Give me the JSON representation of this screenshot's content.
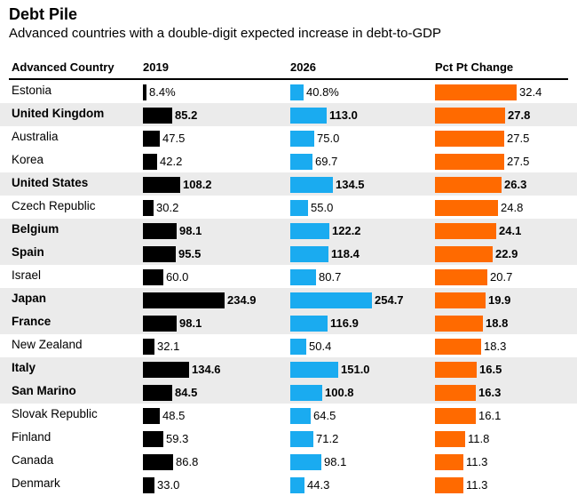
{
  "chart_data": {
    "type": "table",
    "title": "Debt Pile",
    "subtitle": "Advanced countries with a double-digit expected increase in debt-to-GDP",
    "columns": [
      "Advanced Country",
      "2019",
      "2026",
      "Pct Pt Change"
    ],
    "colors": {
      "y2019": "#000000",
      "y2026": "#1aabf0",
      "change": "#ff6a00",
      "shade": "#ebebeb"
    },
    "rows": [
      {
        "country": "Estonia",
        "y2019": 8.4,
        "y2019_label": "8.4%",
        "y2026": 40.8,
        "y2026_label": "40.8%",
        "change": 32.4,
        "change_label": "32.4",
        "bold": false
      },
      {
        "country": "United Kingdom",
        "y2019": 85.2,
        "y2019_label": "85.2",
        "y2026": 113.0,
        "y2026_label": "113.0",
        "change": 27.8,
        "change_label": "27.8",
        "bold": true
      },
      {
        "country": "Australia",
        "y2019": 47.5,
        "y2019_label": "47.5",
        "y2026": 75.0,
        "y2026_label": "75.0",
        "change": 27.5,
        "change_label": "27.5",
        "bold": false
      },
      {
        "country": "Korea",
        "y2019": 42.2,
        "y2019_label": "42.2",
        "y2026": 69.7,
        "y2026_label": "69.7",
        "change": 27.5,
        "change_label": "27.5",
        "bold": false
      },
      {
        "country": "United States",
        "y2019": 108.2,
        "y2019_label": "108.2",
        "y2026": 134.5,
        "y2026_label": "134.5",
        "change": 26.3,
        "change_label": "26.3",
        "bold": true
      },
      {
        "country": "Czech Republic",
        "y2019": 30.2,
        "y2019_label": "30.2",
        "y2026": 55.0,
        "y2026_label": "55.0",
        "change": 24.8,
        "change_label": "24.8",
        "bold": false
      },
      {
        "country": "Belgium",
        "y2019": 98.1,
        "y2019_label": "98.1",
        "y2026": 122.2,
        "y2026_label": "122.2",
        "change": 24.1,
        "change_label": "24.1",
        "bold": true
      },
      {
        "country": "Spain",
        "y2019": 95.5,
        "y2019_label": "95.5",
        "y2026": 118.4,
        "y2026_label": "118.4",
        "change": 22.9,
        "change_label": "22.9",
        "bold": true
      },
      {
        "country": "Israel",
        "y2019": 60.0,
        "y2019_label": "60.0",
        "y2026": 80.7,
        "y2026_label": "80.7",
        "change": 20.7,
        "change_label": "20.7",
        "bold": false
      },
      {
        "country": "Japan",
        "y2019": 234.9,
        "y2019_label": "234.9",
        "y2026": 254.7,
        "y2026_label": "254.7",
        "change": 19.9,
        "change_label": "19.9",
        "bold": true
      },
      {
        "country": "France",
        "y2019": 98.1,
        "y2019_label": "98.1",
        "y2026": 116.9,
        "y2026_label": "116.9",
        "change": 18.8,
        "change_label": "18.8",
        "bold": true
      },
      {
        "country": "New Zealand",
        "y2019": 32.1,
        "y2019_label": "32.1",
        "y2026": 50.4,
        "y2026_label": "50.4",
        "change": 18.3,
        "change_label": "18.3",
        "bold": false
      },
      {
        "country": "Italy",
        "y2019": 134.6,
        "y2019_label": "134.6",
        "y2026": 151.0,
        "y2026_label": "151.0",
        "change": 16.5,
        "change_label": "16.5",
        "bold": true
      },
      {
        "country": "San Marino",
        "y2019": 84.5,
        "y2019_label": "84.5",
        "y2026": 100.8,
        "y2026_label": "100.8",
        "change": 16.3,
        "change_label": "16.3",
        "bold": true
      },
      {
        "country": "Slovak Republic",
        "y2019": 48.5,
        "y2019_label": "48.5",
        "y2026": 64.5,
        "y2026_label": "64.5",
        "change": 16.1,
        "change_label": "16.1",
        "bold": false
      },
      {
        "country": "Finland",
        "y2019": 59.3,
        "y2019_label": "59.3",
        "y2026": 71.2,
        "y2026_label": "71.2",
        "change": 11.8,
        "change_label": "11.8",
        "bold": false
      },
      {
        "country": "Canada",
        "y2019": 86.8,
        "y2019_label": "86.8",
        "y2026": 98.1,
        "y2026_label": "98.1",
        "change": 11.3,
        "change_label": "11.3",
        "bold": false
      },
      {
        "country": "Denmark",
        "y2019": 33.0,
        "y2019_label": "33.0",
        "y2026": 44.3,
        "y2026_label": "44.3",
        "change": 11.3,
        "change_label": "11.3",
        "bold": false
      }
    ]
  }
}
